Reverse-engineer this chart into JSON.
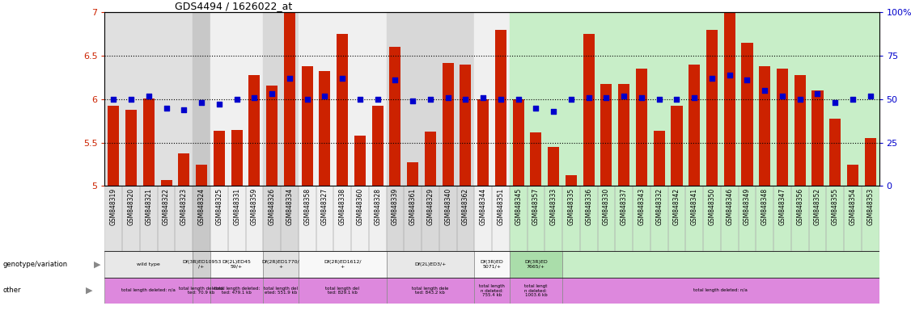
{
  "title": "GDS4494 / 1626022_at",
  "bar_color": "#CC2200",
  "dot_color": "#0000CC",
  "ylim": [
    5.0,
    7.0
  ],
  "ytick_labels": [
    "5",
    "5.5",
    "6",
    "6.5",
    "7"
  ],
  "ytick_vals": [
    5.0,
    5.5,
    6.0,
    6.5,
    7.0
  ],
  "y2lim": [
    0,
    100
  ],
  "y2tick_vals": [
    0,
    25,
    50,
    75,
    100
  ],
  "y2tick_labels": [
    "0",
    "25",
    "50",
    "75",
    "100%"
  ],
  "dotted_lines": [
    5.5,
    6.0,
    6.5
  ],
  "samples": [
    "GSM848319",
    "GSM848320",
    "GSM848321",
    "GSM848322",
    "GSM848323",
    "GSM848324",
    "GSM848325",
    "GSM848331",
    "GSM848359",
    "GSM848326",
    "GSM848334",
    "GSM848358",
    "GSM848327",
    "GSM848338",
    "GSM848360",
    "GSM848328",
    "GSM848339",
    "GSM848361",
    "GSM848329",
    "GSM848340",
    "GSM848362",
    "GSM848344",
    "GSM848351",
    "GSM848345",
    "GSM848357",
    "GSM848333",
    "GSM848335",
    "GSM848336",
    "GSM848330",
    "GSM848337",
    "GSM848343",
    "GSM848332",
    "GSM848342",
    "GSM848341",
    "GSM848350",
    "GSM848346",
    "GSM848349",
    "GSM848348",
    "GSM848347",
    "GSM848356",
    "GSM848352",
    "GSM848355",
    "GSM848354",
    "GSM848353"
  ],
  "bar_values": [
    5.92,
    5.88,
    6.01,
    5.07,
    5.38,
    5.25,
    5.64,
    5.65,
    6.28,
    6.16,
    7.0,
    6.38,
    6.32,
    6.75,
    5.58,
    5.92,
    6.6,
    5.27,
    5.63,
    6.42,
    6.4,
    6.0,
    6.8,
    6.0,
    5.62,
    5.45,
    5.12,
    6.75,
    6.18,
    6.18,
    6.35,
    5.64,
    5.92,
    6.4,
    6.8,
    7.0,
    6.65,
    6.38,
    6.35,
    6.28,
    6.1,
    5.78,
    5.25,
    5.55
  ],
  "dot_values": [
    50,
    50,
    52,
    45,
    44,
    48,
    47,
    50,
    51,
    53,
    62,
    50,
    52,
    62,
    50,
    50,
    61,
    49,
    50,
    51,
    50,
    51,
    50,
    50,
    45,
    43,
    50,
    51,
    51,
    52,
    51,
    50,
    50,
    51,
    62,
    64,
    61,
    55,
    52,
    50,
    53,
    48,
    50,
    52
  ],
  "group_backgrounds": [
    [
      0,
      4,
      "#E0E0E0"
    ],
    [
      5,
      5,
      "#C8C8C8"
    ],
    [
      6,
      8,
      "#F0F0F0"
    ],
    [
      9,
      10,
      "#D8D8D8"
    ],
    [
      11,
      15,
      "#F0F0F0"
    ],
    [
      16,
      20,
      "#D8D8D8"
    ],
    [
      21,
      22,
      "#F0F0F0"
    ],
    [
      23,
      43,
      "#C8EEC8"
    ]
  ],
  "genotype_groups": [
    [
      0,
      4,
      "#E8E8E8",
      "wild type"
    ],
    [
      5,
      5,
      "#D0D0D0",
      "Df(3R)ED10953\n/+"
    ],
    [
      6,
      8,
      "#F8F8F8",
      "Df(2L)ED45\n59/+"
    ],
    [
      9,
      10,
      "#E0E0E0",
      "Df(2R)ED1770/\n+"
    ],
    [
      11,
      15,
      "#F8F8F8",
      "Df(2R)ED1612/\n+"
    ],
    [
      16,
      20,
      "#E8E8E8",
      "Df(2L)ED3/+"
    ],
    [
      21,
      22,
      "#F8F8F8",
      "Df(3R)ED\n5071/+"
    ],
    [
      23,
      25,
      "#AADDAA",
      "Df(3R)ED\n7665/+"
    ],
    [
      26,
      43,
      "#C8EEC8",
      ""
    ]
  ],
  "other_groups": [
    [
      0,
      4,
      "#DD88DD",
      "total length deleted: n/a"
    ],
    [
      5,
      5,
      "#DD88DD",
      "total length deleted:\nted: 70.9 kb"
    ],
    [
      6,
      8,
      "#DD88DD",
      "total length deleted:\nted: 479.1 kb"
    ],
    [
      9,
      10,
      "#DD88DD",
      "total length del\neted: 551.9 kb"
    ],
    [
      11,
      15,
      "#DD88DD",
      "total length del\nted: 829.1 kb"
    ],
    [
      16,
      20,
      "#DD88DD",
      "total length dele\nted: 843.2 kb"
    ],
    [
      21,
      22,
      "#DD88DD",
      "total length\nn deleted:\n755.4 kb"
    ],
    [
      23,
      25,
      "#DD88DD",
      "total lengt\nn deleted:\n1003.6 kb"
    ],
    [
      26,
      43,
      "#DD88DD",
      "total length deleted: n/a"
    ]
  ]
}
